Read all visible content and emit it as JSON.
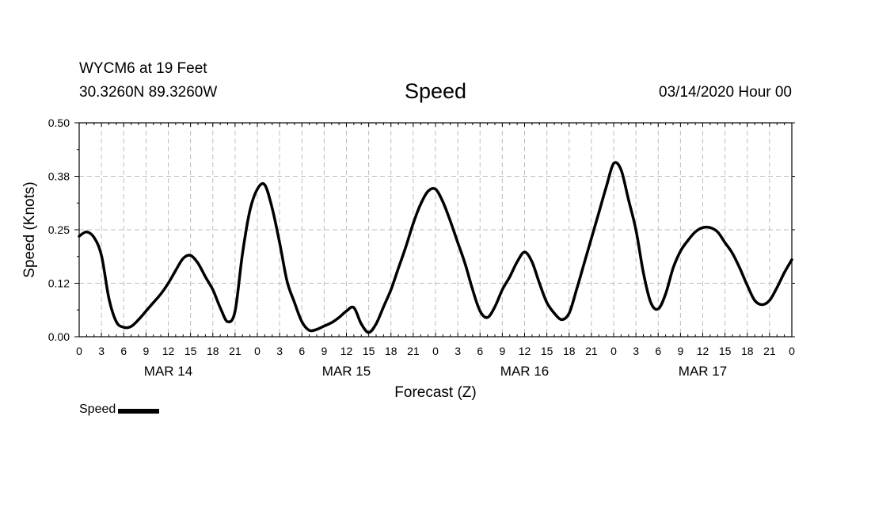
{
  "header": {
    "station": "WYCM6 at 19 Feet",
    "coords": "30.3260N 89.3260W",
    "title": "Speed",
    "timestamp": "03/14/2020 Hour 00"
  },
  "chart_data": {
    "type": "line",
    "title": "Speed",
    "xlabel": "Forecast (Z)",
    "ylabel": "Speed (Knots)",
    "ylim": [
      0,
      0.5
    ],
    "xlim": [
      0,
      96
    ],
    "y_ticks": [
      "0.00",
      "0.12",
      "0.25",
      "0.38",
      "0.50"
    ],
    "x_tick_labels": [
      "0",
      "3",
      "6",
      "9",
      "12",
      "15",
      "18",
      "21",
      "0",
      "3",
      "6",
      "9",
      "12",
      "15",
      "18",
      "21",
      "0",
      "3",
      "6",
      "9",
      "12",
      "15",
      "18",
      "21",
      "0",
      "3",
      "6",
      "9",
      "12",
      "15",
      "18",
      "21",
      "0"
    ],
    "day_labels": [
      "MAR 14",
      "MAR 15",
      "MAR 16",
      "MAR 17"
    ],
    "grid": true,
    "legend": "bottom-left",
    "series": [
      {
        "name": "Speed",
        "color": "#000000",
        "x": [
          0,
          1,
          2,
          3,
          4,
          5,
          6,
          7,
          8,
          9,
          10,
          11,
          12,
          13,
          14,
          15,
          16,
          17,
          18,
          19,
          20,
          21,
          22,
          23,
          24,
          25,
          26,
          27,
          28,
          29,
          30,
          31,
          32,
          33,
          34,
          35,
          36,
          37,
          38,
          39,
          40,
          41,
          42,
          43,
          44,
          45,
          46,
          47,
          48,
          49,
          50,
          51,
          52,
          53,
          54,
          55,
          56,
          57,
          58,
          59,
          60,
          61,
          62,
          63,
          64,
          65,
          66,
          67,
          68,
          69,
          70,
          71,
          72,
          73,
          74,
          75,
          76,
          77,
          78,
          79,
          80,
          81,
          82,
          83,
          84,
          85,
          86,
          87,
          88,
          89,
          90,
          91,
          92,
          93,
          94,
          95,
          96
        ],
        "y": [
          0.235,
          0.245,
          0.232,
          0.19,
          0.09,
          0.035,
          0.022,
          0.024,
          0.04,
          0.06,
          0.08,
          0.1,
          0.125,
          0.155,
          0.183,
          0.19,
          0.172,
          0.14,
          0.11,
          0.068,
          0.035,
          0.06,
          0.195,
          0.295,
          0.345,
          0.355,
          0.3,
          0.22,
          0.13,
          0.08,
          0.035,
          0.015,
          0.017,
          0.025,
          0.033,
          0.045,
          0.06,
          0.068,
          0.03,
          0.01,
          0.03,
          0.07,
          0.11,
          0.16,
          0.21,
          0.265,
          0.31,
          0.34,
          0.345,
          0.315,
          0.27,
          0.22,
          0.17,
          0.11,
          0.06,
          0.045,
          0.07,
          0.11,
          0.14,
          0.175,
          0.198,
          0.175,
          0.125,
          0.08,
          0.055,
          0.04,
          0.055,
          0.11,
          0.17,
          0.23,
          0.29,
          0.35,
          0.405,
          0.39,
          0.32,
          0.25,
          0.15,
          0.08,
          0.065,
          0.1,
          0.16,
          0.2,
          0.225,
          0.245,
          0.255,
          0.255,
          0.245,
          0.22,
          0.195,
          0.16,
          0.12,
          0.085,
          0.075,
          0.085,
          0.115,
          0.15,
          0.18
        ]
      }
    ]
  },
  "legend": {
    "label": "Speed"
  }
}
